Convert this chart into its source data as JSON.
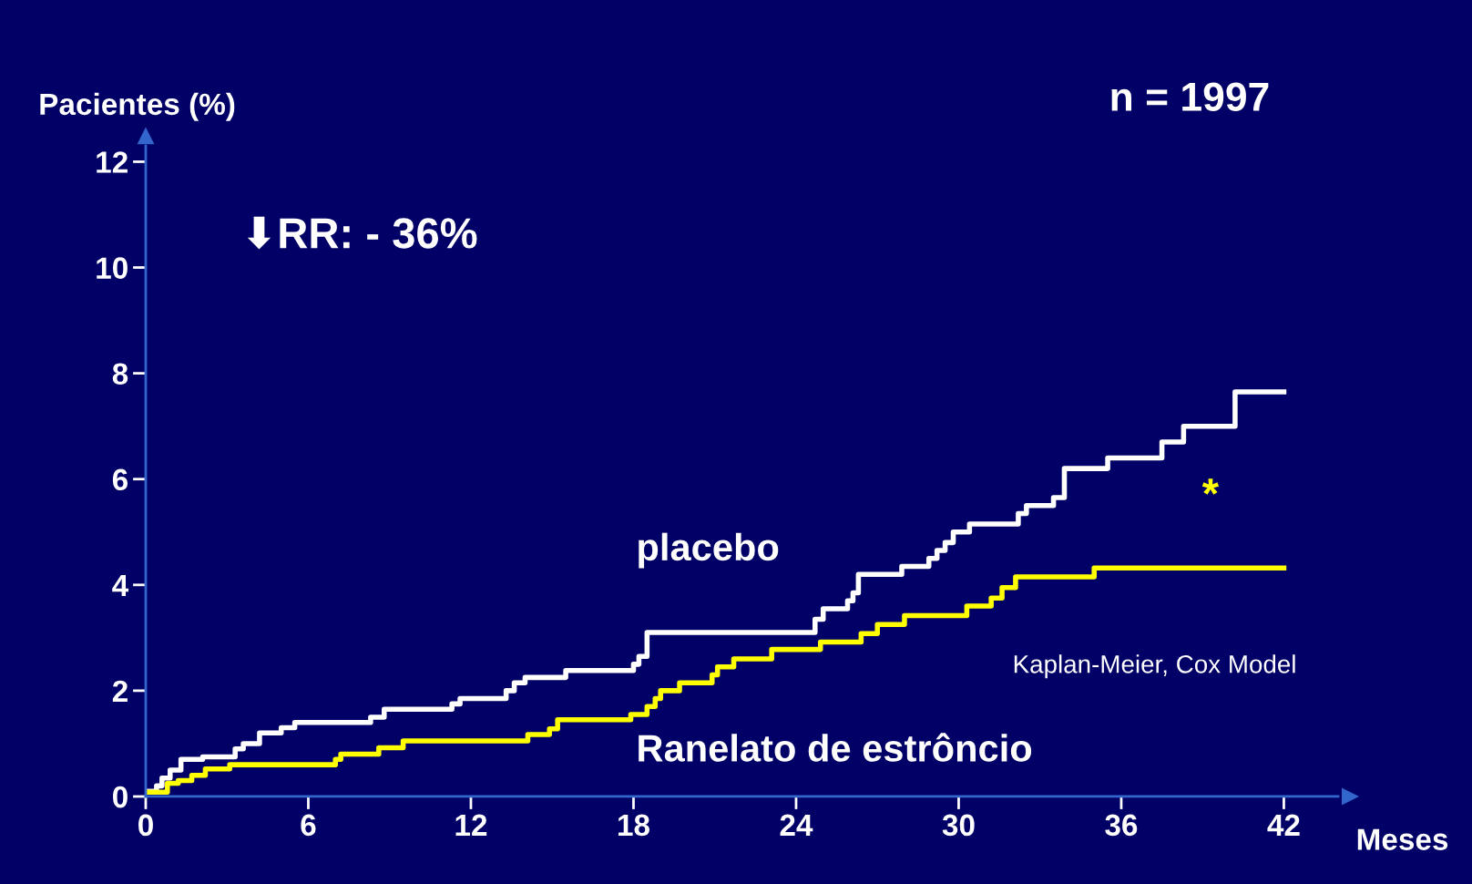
{
  "chart_data": {
    "type": "step",
    "xlabel": "Meses",
    "ylabel": "Pacientes (%)",
    "xlim": [
      0,
      44
    ],
    "ylim": [
      0,
      12.3
    ],
    "xticks": [
      0,
      6,
      12,
      18,
      24,
      30,
      36,
      42
    ],
    "yticks": [
      0,
      2,
      4,
      6,
      8,
      10,
      12
    ],
    "grid": false,
    "legend": false,
    "marker": "none",
    "line_style": "solid",
    "annotations": [
      "⬇RR: - 36%",
      "n = 1997",
      "*",
      "Kaplan-Meier, Cox Model"
    ],
    "series": [
      {
        "name": "placebo",
        "color": "#ffffff",
        "x": [
          0.1,
          0.4,
          0.6,
          0.9,
          1.3,
          2.1,
          3.3,
          3.6,
          4.2,
          5.0,
          5.5,
          8.3,
          8.8,
          11.3,
          11.6,
          13.3,
          13.6,
          14.0,
          15.5,
          18.0,
          18.2,
          18.5,
          24.7,
          25.0,
          25.9,
          26.1,
          26.3,
          27.9,
          28.9,
          29.2,
          29.5,
          29.8,
          30.4,
          32.2,
          32.5,
          33.5,
          33.9,
          35.5,
          37.5,
          38.3,
          40.2,
          42.0
        ],
        "values": [
          0.1,
          0.2,
          0.35,
          0.5,
          0.7,
          0.75,
          0.9,
          1.0,
          1.2,
          1.3,
          1.4,
          1.5,
          1.65,
          1.75,
          1.85,
          2.0,
          2.15,
          2.25,
          2.38,
          2.5,
          2.65,
          3.1,
          3.35,
          3.55,
          3.7,
          3.85,
          4.2,
          4.35,
          4.5,
          4.65,
          4.8,
          5.0,
          5.15,
          5.35,
          5.5,
          5.65,
          6.2,
          6.4,
          6.7,
          7.0,
          7.65,
          7.65
        ]
      },
      {
        "name": "Ranelato de estrôncio",
        "color": "#ffff00",
        "x": [
          0.1,
          0.8,
          1.2,
          1.7,
          2.2,
          3.1,
          7.0,
          7.2,
          8.6,
          9.5,
          14.1,
          14.9,
          15.2,
          17.9,
          18.5,
          18.8,
          19.0,
          19.7,
          20.9,
          21.1,
          21.7,
          23.1,
          24.9,
          26.4,
          27.0,
          28.0,
          30.3,
          31.2,
          31.6,
          32.1,
          35.0,
          42.0
        ],
        "values": [
          0.08,
          0.25,
          0.3,
          0.4,
          0.52,
          0.6,
          0.7,
          0.8,
          0.92,
          1.05,
          1.17,
          1.28,
          1.45,
          1.55,
          1.7,
          1.85,
          2.0,
          2.15,
          2.3,
          2.45,
          2.6,
          2.78,
          2.92,
          3.08,
          3.25,
          3.42,
          3.6,
          3.75,
          3.95,
          4.15,
          4.32,
          4.32
        ]
      }
    ]
  }
}
